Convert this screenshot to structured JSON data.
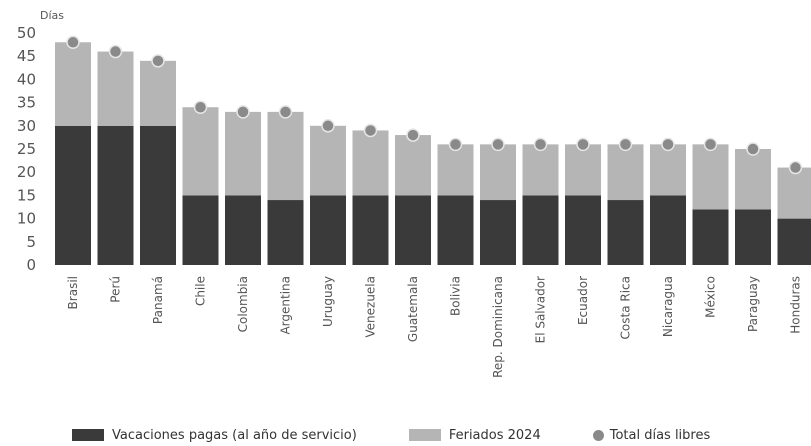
{
  "chart_data": {
    "type": "bar",
    "ylabel": "Días",
    "ylim": [
      0,
      50
    ],
    "yticks": [
      0,
      5,
      10,
      15,
      20,
      25,
      30,
      35,
      40,
      45,
      50
    ],
    "categories": [
      "Brasil",
      "Perú",
      "Panamá",
      "Chile",
      "Colombia",
      "Argentina",
      "Uruguay",
      "Venezuela",
      "Guatemala",
      "Bolivia",
      "Rep. Dominicana",
      "El Salvador",
      "Ecuador",
      "Costa Rica",
      "Nicaragua",
      "México",
      "Paraguay",
      "Honduras"
    ],
    "series": [
      {
        "name": "Vacaciones pagas (al año de servicio)",
        "color": "#3a3a3a",
        "values": [
          30,
          30,
          30,
          15,
          15,
          14,
          15,
          15,
          15,
          15,
          14,
          15,
          15,
          14,
          15,
          12,
          12,
          10
        ]
      },
      {
        "name": "Feriados 2024",
        "color": "#b5b5b5",
        "values": [
          18,
          16,
          14,
          19,
          18,
          19,
          15,
          14,
          13,
          11,
          12,
          11,
          11,
          12,
          11,
          14,
          13,
          11
        ]
      },
      {
        "name": "Total días libres",
        "color": "#8a8a8a",
        "marker": "circle",
        "values": [
          48,
          46,
          44,
          34,
          33,
          33,
          30,
          29,
          28,
          26,
          26,
          26,
          26,
          26,
          26,
          26,
          25,
          21
        ]
      }
    ],
    "grid": false,
    "legend_position": "bottom"
  }
}
